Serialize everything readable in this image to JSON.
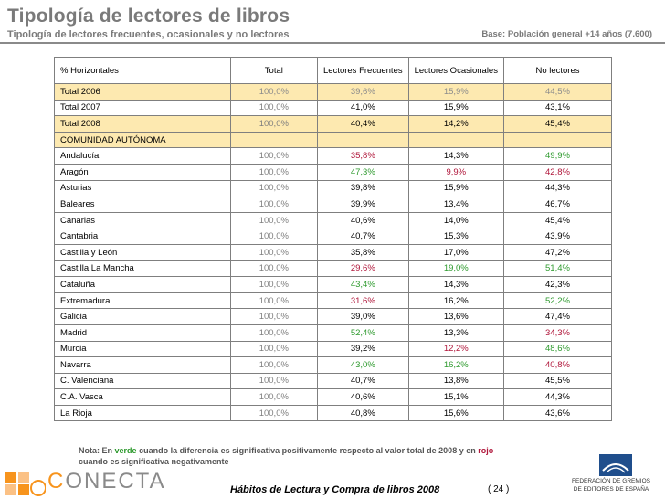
{
  "header": {
    "title": "Tipología de lectores de libros",
    "subtitle": "Tipología de lectores frecuentes, ocasionales y no lectores",
    "base": "Base: Población general +14 años (7.600)"
  },
  "table": {
    "columns": [
      "% Horizontales",
      "Total",
      "Lectores Frecuentes",
      "Lectores Ocasionales",
      "No lectores"
    ],
    "totals": [
      {
        "label": "Total 2006",
        "total": "100,0%",
        "frecuentes": "39,6%",
        "ocasionales": "15,9%",
        "no_lectores": "44,5%"
      },
      {
        "label": "Total 2007",
        "total": "100,0%",
        "frecuentes": "41,0%",
        "ocasionales": "15,9%",
        "no_lectores": "43,1%"
      },
      {
        "label": "Total 2008",
        "total": "100,0%",
        "frecuentes": "40,4%",
        "ocasionales": "14,2%",
        "no_lectores": "45,4%"
      }
    ],
    "region_header": "COMUNIDAD AUTÓNOMA",
    "regions": [
      {
        "label": "Andalucía",
        "total": "100,0%",
        "frecuentes": "35,8%",
        "ocasionales": "14,3%",
        "no_lectores": "49,9%",
        "fc": "red",
        "oc": "",
        "nc": "green"
      },
      {
        "label": "Aragón",
        "total": "100,0%",
        "frecuentes": "47,3%",
        "ocasionales": "9,9%",
        "no_lectores": "42,8%",
        "fc": "green",
        "oc": "red",
        "nc": "red"
      },
      {
        "label": "Asturias",
        "total": "100,0%",
        "frecuentes": "39,8%",
        "ocasionales": "15,9%",
        "no_lectores": "44,3%",
        "fc": "",
        "oc": "",
        "nc": ""
      },
      {
        "label": "Baleares",
        "total": "100,0%",
        "frecuentes": "39,9%",
        "ocasionales": "13,4%",
        "no_lectores": "46,7%",
        "fc": "",
        "oc": "",
        "nc": ""
      },
      {
        "label": "Canarias",
        "total": "100,0%",
        "frecuentes": "40,6%",
        "ocasionales": "14,0%",
        "no_lectores": "45,4%",
        "fc": "",
        "oc": "",
        "nc": ""
      },
      {
        "label": "Cantabria",
        "total": "100,0%",
        "frecuentes": "40,7%",
        "ocasionales": "15,3%",
        "no_lectores": "43,9%",
        "fc": "",
        "oc": "",
        "nc": ""
      },
      {
        "label": "Castilla y León",
        "total": "100,0%",
        "frecuentes": "35,8%",
        "ocasionales": "17,0%",
        "no_lectores": "47,2%",
        "fc": "",
        "oc": "",
        "nc": ""
      },
      {
        "label": "Castilla La Mancha",
        "total": "100,0%",
        "frecuentes": "29,6%",
        "ocasionales": "19,0%",
        "no_lectores": "51,4%",
        "fc": "red",
        "oc": "green",
        "nc": "green"
      },
      {
        "label": "Cataluña",
        "total": "100,0%",
        "frecuentes": "43,4%",
        "ocasionales": "14,3%",
        "no_lectores": "42,3%",
        "fc": "green",
        "oc": "",
        "nc": ""
      },
      {
        "label": "Extremadura",
        "total": "100,0%",
        "frecuentes": "31,6%",
        "ocasionales": "16,2%",
        "no_lectores": "52,2%",
        "fc": "red",
        "oc": "",
        "nc": "green"
      },
      {
        "label": "Galicia",
        "total": "100,0%",
        "frecuentes": "39,0%",
        "ocasionales": "13,6%",
        "no_lectores": "47,4%",
        "fc": "",
        "oc": "",
        "nc": ""
      },
      {
        "label": "Madrid",
        "total": "100,0%",
        "frecuentes": "52,4%",
        "ocasionales": "13,3%",
        "no_lectores": "34,3%",
        "fc": "green",
        "oc": "",
        "nc": "red"
      },
      {
        "label": "Murcia",
        "total": "100,0%",
        "frecuentes": "39,2%",
        "ocasionales": "12,2%",
        "no_lectores": "48,6%",
        "fc": "",
        "oc": "red",
        "nc": "green"
      },
      {
        "label": "Navarra",
        "total": "100,0%",
        "frecuentes": "43,0%",
        "ocasionales": "16,2%",
        "no_lectores": "40,8%",
        "fc": "green",
        "oc": "green",
        "nc": "red"
      },
      {
        "label": "C. Valenciana",
        "total": "100,0%",
        "frecuentes": "40,7%",
        "ocasionales": "13,8%",
        "no_lectores": "45,5%",
        "fc": "",
        "oc": "",
        "nc": ""
      },
      {
        "label": "C.A. Vasca",
        "total": "100,0%",
        "frecuentes": "40,6%",
        "ocasionales": "15,1%",
        "no_lectores": "44,3%",
        "fc": "",
        "oc": "",
        "nc": ""
      },
      {
        "label": "La Rioja",
        "total": "100,0%",
        "frecuentes": "40,8%",
        "ocasionales": "15,6%",
        "no_lectores": "43,6%",
        "fc": "",
        "oc": "",
        "nc": ""
      }
    ]
  },
  "note": {
    "prefix": "Nota: En",
    "green_word": "verde",
    "middle": "cuando la diferencia es significativa positivamente respecto al valor total de 2008 y en",
    "red_word": "rojo",
    "suffix": "cuando es significativa negativamente"
  },
  "footer": {
    "conecta": "ONECTA",
    "conecta_initial": "C",
    "publication": "Hábitos de Lectura y Compra de libros 2008",
    "page": "( 24 )",
    "federation_line1": "FEDERACIÓN DE GREMIOS",
    "federation_line2": "DE EDITORES DE ESPAÑA"
  },
  "colors": {
    "highlight": "#fde9b0",
    "positive": "#2e9a2e",
    "negative": "#b0163a",
    "header_gray": "#7a7a7a"
  }
}
